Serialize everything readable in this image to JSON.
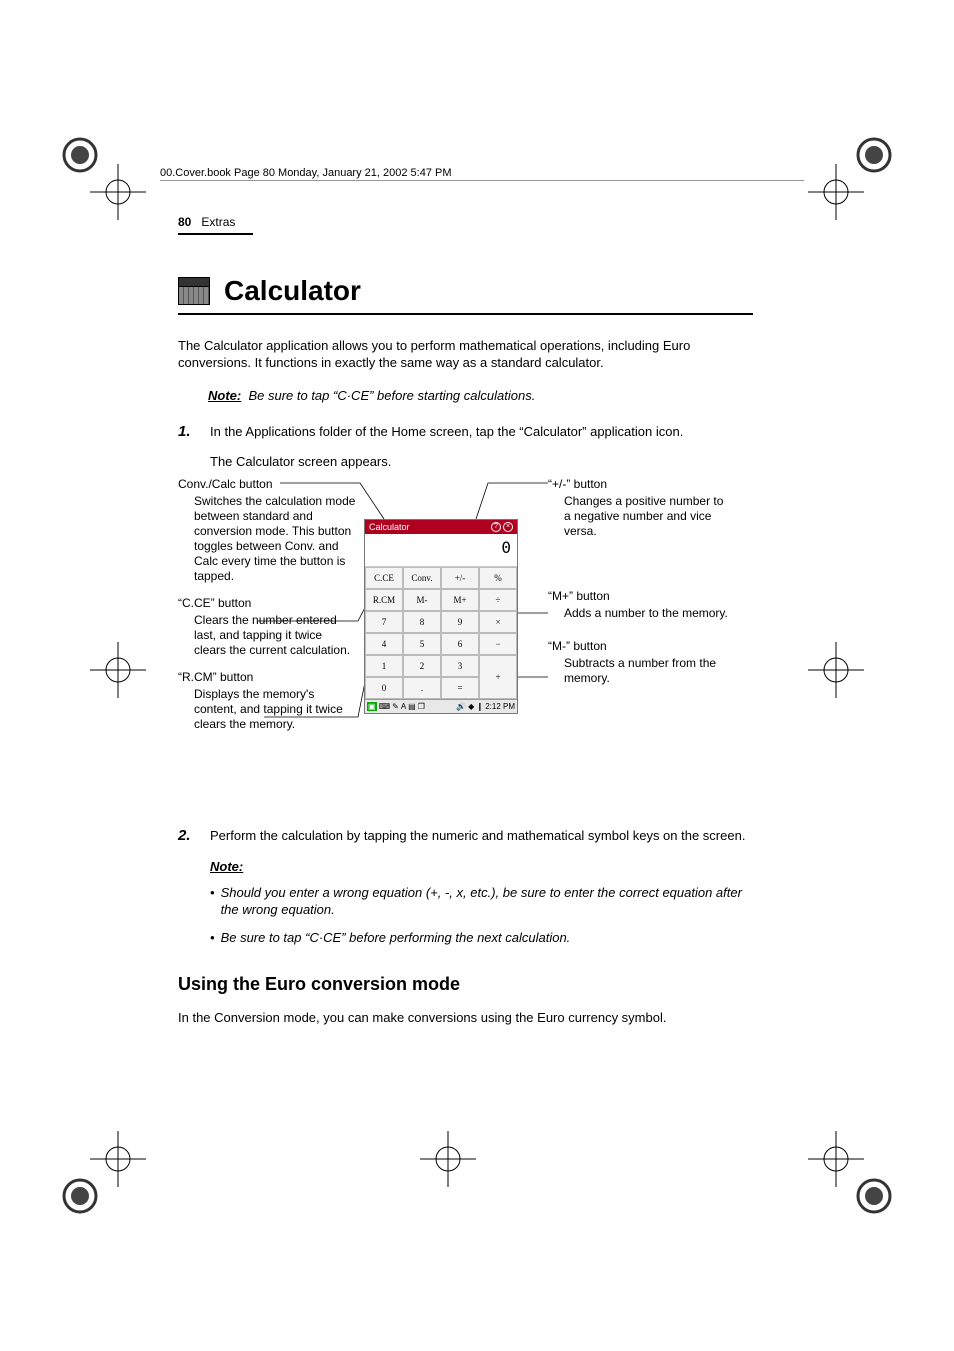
{
  "header_text": "00.Cover.book  Page 80  Monday, January 21, 2002  5:47 PM",
  "page_number": "80",
  "section_name": "Extras",
  "title": "Calculator",
  "intro": "The Calculator application allows you to perform mathematical operations, including Euro conversions. It functions in exactly the same way as a standard calculator.",
  "note1_label": "Note:",
  "note1_text": "Be sure to tap “C·CE” before starting calculations.",
  "step1_num": "1.",
  "step1_text": "In the Applications folder of the Home screen, tap the “Calculator” application icon.",
  "step1_sub": "The Calculator screen appears.",
  "callouts_left": [
    {
      "title": "Conv./Calc button",
      "body": "Switches the calculation mode between standard and conversion mode. This button toggles between Conv. and Calc every time the button is tapped."
    },
    {
      "title": "“C.CE” button",
      "body": "Clears the number entered last, and tapping it twice clears the current calculation."
    },
    {
      "title": "“R.CM” button",
      "body": "Displays the memory's content, and tapping it twice clears the memory."
    }
  ],
  "callouts_right": [
    {
      "title": "“+/-” button",
      "body": "Changes a positive number to a negative number and vice versa."
    },
    {
      "title": "“M+” button",
      "body": "Adds a number to the memory."
    },
    {
      "title": "“M-” button",
      "body": "Subtracts a number from the memory."
    }
  ],
  "screenshot": {
    "title": "Calculator",
    "display": "0",
    "grid": [
      [
        "C.CE",
        "Conv.",
        "+/-",
        "%"
      ],
      [
        "R.CM",
        "M-",
        "M+",
        "÷"
      ],
      [
        "7",
        "8",
        "9",
        "×"
      ],
      [
        "4",
        "5",
        "6",
        "−"
      ],
      [
        "1",
        "2",
        "3",
        "+"
      ],
      [
        "0",
        ".",
        "=",
        ""
      ]
    ],
    "taskbar_time": "2:12 PM",
    "tb_left_glyphs": [
      "▣",
      "⌨",
      "✎",
      "A",
      "▤",
      "❐"
    ],
    "tb_right_glyphs": [
      "🔊",
      "◆",
      "❙"
    ]
  },
  "step2_num": "2.",
  "step2_text": "Perform the calculation by tapping the numeric and mathematical symbol keys on the screen.",
  "note2_label": "Note:",
  "note_bullets": [
    "Should you enter a wrong equation (+, -, x, etc.), be sure to enter the correct equation after the wrong equation.",
    "Be sure to tap “C·CE” before performing the next calculation."
  ],
  "h2": "Using the Euro conversion mode",
  "h2_body": "In the Conversion mode, you can make conversions using the Euro currency symbol.",
  "colors": {
    "accent": "#b00020"
  }
}
